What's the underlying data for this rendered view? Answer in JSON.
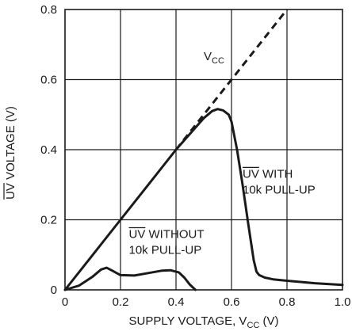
{
  "chart_data": {
    "type": "line",
    "title": "",
    "xlabel": {
      "prefix": "SUPPLY VOLTAGE, V",
      "sub": "CC",
      "suffix": " (V)"
    },
    "ylabel": {
      "overbar": "UV",
      "rest": " VOLTAGE (V)"
    },
    "xlim": [
      0,
      1.0
    ],
    "ylim": [
      0,
      0.8
    ],
    "x_ticks": [
      "0",
      "0.2",
      "0.4",
      "0.6",
      "0.8",
      "1.0"
    ],
    "y_ticks": [
      "0",
      "0.2",
      "0.4",
      "0.6",
      "0.8"
    ],
    "grid": true,
    "series": [
      {
        "name": "VCC",
        "style": "dashed",
        "x": [
          0.4,
          0.8
        ],
        "y": [
          0.4,
          0.8
        ]
      },
      {
        "name": "UV WITH 10k PULL-UP",
        "style": "solid",
        "x": [
          0,
          0.1,
          0.2,
          0.3,
          0.4,
          0.45,
          0.5,
          0.53,
          0.55,
          0.57,
          0.59,
          0.6,
          0.62,
          0.64,
          0.66,
          0.68,
          0.69,
          0.7,
          0.72,
          0.75,
          0.8,
          0.9,
          1.0
        ],
        "y": [
          0,
          0.1,
          0.2,
          0.3,
          0.4,
          0.445,
          0.49,
          0.51,
          0.516,
          0.512,
          0.5,
          0.48,
          0.4,
          0.3,
          0.19,
          0.085,
          0.052,
          0.042,
          0.035,
          0.03,
          0.026,
          0.019,
          0.014
        ]
      },
      {
        "name": "UV WITHOUT 10k PULL-UP",
        "style": "solid",
        "x": [
          0,
          0.05,
          0.1,
          0.13,
          0.15,
          0.17,
          0.2,
          0.25,
          0.3,
          0.35,
          0.38,
          0.41,
          0.43,
          0.45,
          0.47
        ],
        "y": [
          0,
          0.012,
          0.038,
          0.058,
          0.063,
          0.055,
          0.042,
          0.041,
          0.048,
          0.055,
          0.056,
          0.05,
          0.035,
          0.015,
          0
        ]
      }
    ],
    "annotations": [
      {
        "prefix": "V",
        "sub": "CC",
        "x": 0.5,
        "y": 0.655
      },
      {
        "overbar": "UV",
        "line1": " WITH",
        "line2": "10k PULL-UP",
        "x": 0.64,
        "y": 0.32
      },
      {
        "overbar": "UV",
        "line1": " WITHOUT",
        "line2": "10k PULL-UP",
        "x": 0.23,
        "y": 0.148
      }
    ]
  }
}
